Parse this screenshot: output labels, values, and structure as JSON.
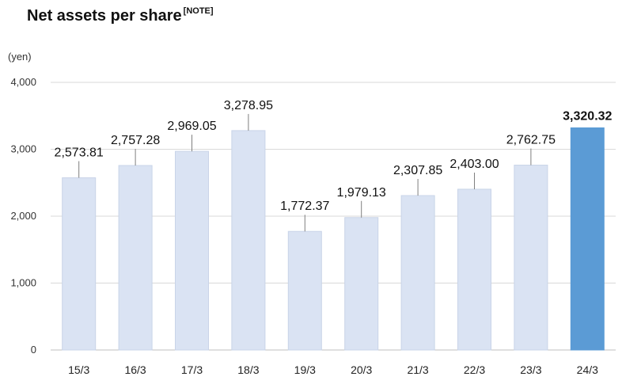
{
  "header": {
    "title": "Net assets per share",
    "note": "[NOTE]"
  },
  "chart_data": {
    "type": "bar",
    "title": "Net assets per share",
    "unit": "(yen)",
    "categories": [
      "15/3",
      "16/3",
      "17/3",
      "18/3",
      "19/3",
      "20/3",
      "21/3",
      "22/3",
      "23/3",
      "24/3"
    ],
    "values": [
      2573.81,
      2757.28,
      2969.05,
      3278.95,
      1772.37,
      1979.13,
      2307.85,
      2403.0,
      2762.75,
      3320.32
    ],
    "labels": [
      "2,573.81",
      "2,757.28",
      "2,969.05",
      "3,278.95",
      "1,772.37",
      "1,979.13",
      "2,307.85",
      "2,403.00",
      "2,762.75",
      "3,320.32"
    ],
    "yticks": [
      0,
      1000,
      2000,
      3000,
      4000
    ],
    "ytick_labels": [
      "0",
      "1,000",
      "2,000",
      "3,000",
      "4,000"
    ],
    "ylim": [
      0,
      4000
    ],
    "grid": true,
    "highlight_index": 9,
    "colors": {
      "bar": "#dae3f3",
      "bar_border": "#c9d4e8",
      "highlight": "#5b9bd5",
      "grid": "#d9d9d9",
      "axis": "#bfbfbf",
      "leader": "#7f7f7f"
    }
  }
}
